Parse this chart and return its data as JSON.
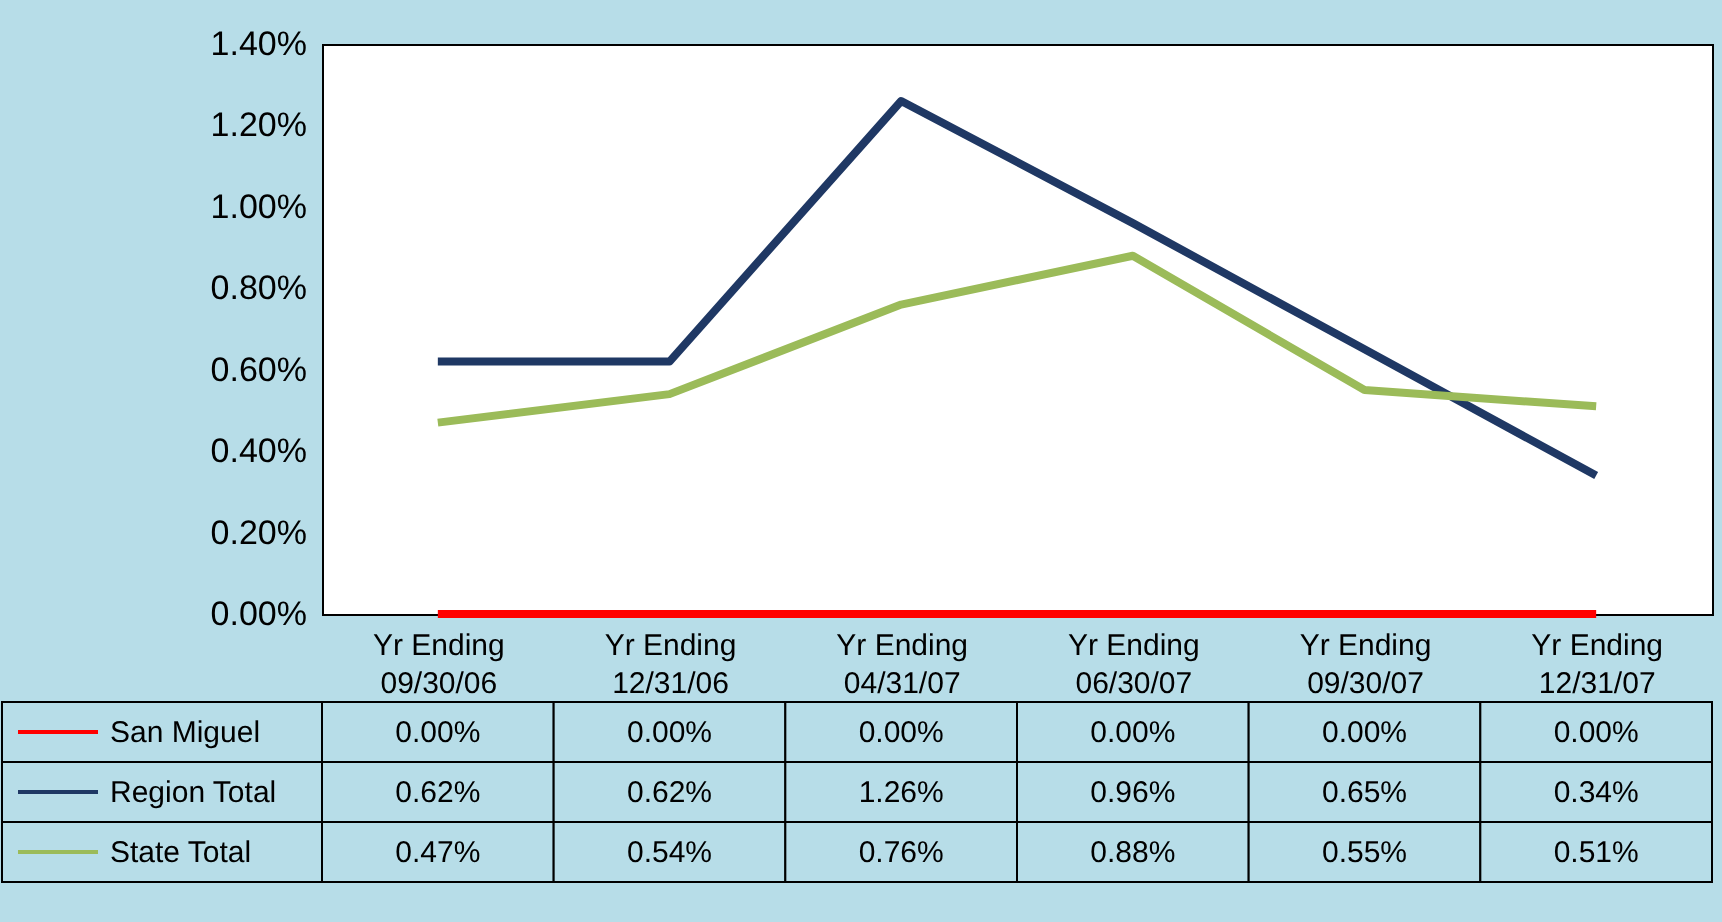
{
  "chart_data": {
    "type": "line",
    "categories": [
      "Yr Ending 09/30/06",
      "Yr Ending 12/31/06",
      "Yr Ending 04/31/07",
      "Yr Ending 06/30/07",
      "Yr Ending 09/30/07",
      "Yr Ending 12/31/07"
    ],
    "ylim": [
      0,
      1.4
    ],
    "yticks": [
      {
        "value": 0,
        "label": "0.00%"
      },
      {
        "value": 0.2,
        "label": "0.20%"
      },
      {
        "value": 0.4,
        "label": "0.40%"
      },
      {
        "value": 0.6,
        "label": "0.60%"
      },
      {
        "value": 0.8,
        "label": "0.80%"
      },
      {
        "value": 1.0,
        "label": "1.00%"
      },
      {
        "value": 1.2,
        "label": "1.20%"
      },
      {
        "value": 1.4,
        "label": "1.40%"
      }
    ],
    "legend": "bottom",
    "grid": false,
    "series": [
      {
        "name": "San Miguel",
        "color": "#ff0000",
        "values": [
          0,
          0,
          0,
          0,
          0,
          0
        ],
        "value_labels": [
          "0.00%",
          "0.00%",
          "0.00%",
          "0.00%",
          "0.00%",
          "0.00%"
        ]
      },
      {
        "name": "Region Total",
        "color": "#1f3864",
        "values": [
          0.62,
          0.62,
          1.26,
          0.96,
          0.65,
          0.34
        ],
        "value_labels": [
          "0.62%",
          "0.62%",
          "1.26%",
          "0.96%",
          "0.65%",
          "0.34%"
        ]
      },
      {
        "name": "State Total",
        "color": "#9bbb59",
        "values": [
          0.47,
          0.54,
          0.76,
          0.88,
          0.55,
          0.51
        ],
        "value_labels": [
          "0.47%",
          "0.54%",
          "0.76%",
          "0.88%",
          "0.55%",
          "0.51%"
        ]
      }
    ]
  }
}
